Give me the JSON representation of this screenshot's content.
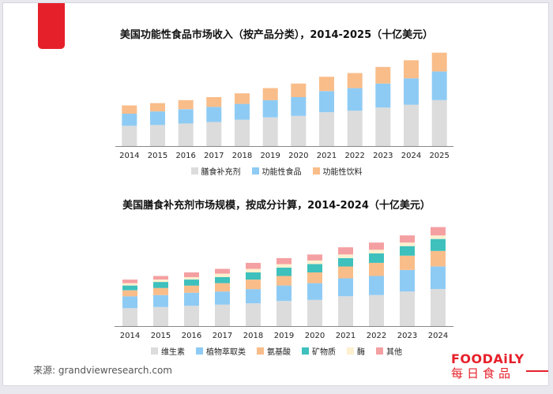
{
  "colors": {
    "gray": "#dcdcdc",
    "blue": "#8ecbf4",
    "orange": "#f9bd8a",
    "teal": "#3ec0bd",
    "cream": "#fdf0cf",
    "pink": "#f4a0a2",
    "brand": "#e6202a"
  },
  "source": "来源: grandviewresearch.com",
  "logo": {
    "en": "FOODAiLY",
    "cn": "每日食品"
  },
  "chart_data": [
    {
      "type": "bar",
      "stacked": true,
      "title": "美国功能性食品市场收入（按产品分类），2014-2025（十亿美元）",
      "categories": [
        "2014",
        "2015",
        "2016",
        "2017",
        "2018",
        "2019",
        "2020",
        "2021",
        "2022",
        "2023",
        "2024",
        "2025"
      ],
      "series": [
        {
          "name": "膳食补充剂",
          "color": "#dcdcdc",
          "values": [
            27,
            28,
            30,
            32,
            35,
            38,
            40,
            45,
            47,
            51,
            55,
            61
          ]
        },
        {
          "name": "功能性食品",
          "color": "#8ecbf4",
          "values": [
            16,
            18,
            19,
            20,
            21,
            23,
            25,
            28,
            30,
            32,
            35,
            38
          ]
        },
        {
          "name": "功能性饮料",
          "color": "#f9bd8a",
          "values": [
            11,
            11,
            12,
            13,
            14,
            16,
            18,
            19,
            20,
            22,
            24,
            25
          ]
        }
      ],
      "ylim": [
        0,
        130
      ]
    },
    {
      "type": "bar",
      "stacked": true,
      "title": "美国膳食补充剂市场规模，按成分计算，2014-2024（十亿美元）",
      "categories": [
        "2014",
        "2015",
        "2016",
        "2017",
        "2018",
        "2019",
        "2020",
        "2021",
        "2022",
        "2023",
        "2024"
      ],
      "series": [
        {
          "name": "维生素",
          "color": "#dcdcdc",
          "values": [
            15,
            16,
            17,
            18,
            19,
            21,
            22,
            25,
            26,
            29,
            31
          ]
        },
        {
          "name": "植物萃取类",
          "color": "#8ecbf4",
          "values": [
            10,
            10,
            11,
            11,
            12,
            13,
            14,
            15,
            16,
            18,
            19
          ]
        },
        {
          "name": "氨基酸",
          "color": "#f9bd8a",
          "values": [
            5,
            6,
            6,
            7,
            8,
            8,
            9,
            10,
            11,
            12,
            13
          ]
        },
        {
          "name": "矿物质",
          "color": "#3ec0bd",
          "values": [
            4,
            5,
            5,
            5,
            6,
            7,
            7,
            7,
            8,
            8,
            10
          ]
        },
        {
          "name": "酶",
          "color": "#fdf0cf",
          "values": [
            2,
            2,
            2,
            3,
            3,
            3,
            3,
            3,
            3,
            3,
            3
          ]
        },
        {
          "name": "其他",
          "color": "#f4a0a2",
          "values": [
            3,
            3,
            4,
            4,
            5,
            5,
            5,
            6,
            6,
            6,
            7
          ]
        }
      ],
      "ylim": [
        0,
        88
      ]
    }
  ]
}
